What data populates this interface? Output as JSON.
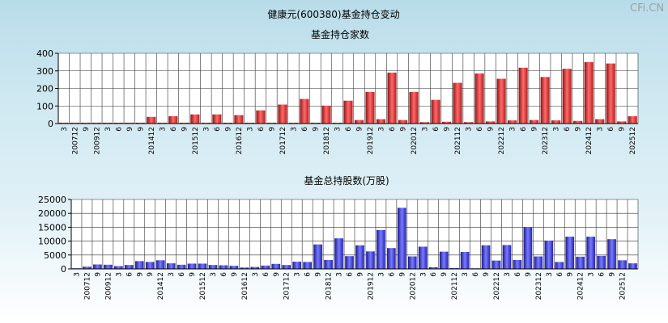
{
  "page": {
    "title": "健康元(600380)基金持仓变动",
    "watermark": "CFi.CN"
  },
  "chart_data": [
    {
      "type": "bar",
      "title": "基金持仓家数",
      "color": "#d93636",
      "ylim": [
        0,
        400
      ],
      "yticks": [
        0,
        100,
        200,
        300,
        400
      ],
      "ytick_labels": [
        "0",
        "100",
        "200",
        "300",
        "400"
      ],
      "tick_labels": [
        "3",
        "200712",
        "9",
        "200912",
        "3",
        "6",
        "9",
        "9",
        "201412",
        "3",
        "6",
        "9",
        "201512",
        "3",
        "6",
        "9",
        "201612",
        "3",
        "6",
        "9",
        "201712",
        "3",
        "6",
        "9",
        "201812",
        "3",
        "6",
        "9",
        "201912",
        "3",
        "6",
        "9",
        "202012",
        "3",
        "6",
        "9",
        "202112",
        "3",
        "6",
        "9",
        "202212",
        "3",
        "6",
        "9",
        "202312",
        "3",
        "6",
        "9",
        "202412",
        "3",
        "6",
        "9",
        "202512"
      ],
      "values": [
        5,
        5,
        5,
        5,
        5,
        5,
        5,
        5,
        38,
        5,
        42,
        5,
        52,
        5,
        52,
        5,
        48,
        5,
        75,
        5,
        108,
        5,
        140,
        5,
        102,
        5,
        130,
        20,
        180,
        25,
        290,
        20,
        180,
        8,
        135,
        10,
        232,
        8,
        285,
        12,
        255,
        18,
        318,
        20,
        265,
        18,
        312,
        15,
        350,
        25,
        342,
        12,
        42
      ]
    },
    {
      "type": "bar",
      "title": "基金总持股数(万股)",
      "color": "#3a3ad6",
      "ylim": [
        0,
        25000
      ],
      "yticks": [
        0,
        5000,
        10000,
        15000,
        20000,
        25000
      ],
      "ytick_labels": [
        "0",
        "5000",
        "10000",
        "15000",
        "20000",
        "25000"
      ],
      "tick_labels": [
        "3",
        "200712",
        "9",
        "200912",
        "3",
        "6",
        "9",
        "9",
        "201412",
        "3",
        "6",
        "9",
        "201512",
        "3",
        "6",
        "9",
        "201612",
        "3",
        "6",
        "9",
        "201712",
        "3",
        "6",
        "9",
        "201812",
        "3",
        "6",
        "9",
        "201912",
        "3",
        "6",
        "9",
        "202012",
        "3",
        "6",
        "9",
        "202112",
        "3",
        "6",
        "9",
        "202212",
        "3",
        "6",
        "9",
        "202312",
        "3",
        "6",
        "9",
        "202412",
        "3",
        "6",
        "9",
        "202512"
      ],
      "values": [
        200,
        800,
        1600,
        1500,
        1000,
        1400,
        2800,
        2500,
        3100,
        2000,
        1500,
        1900,
        1900,
        1400,
        1300,
        1100,
        500,
        700,
        1200,
        1800,
        1400,
        2600,
        2500,
        8800,
        3200,
        11000,
        4600,
        8500,
        6300,
        14000,
        7500,
        22000,
        4500,
        8000,
        600,
        6200,
        300,
        6100,
        200,
        8500,
        3000,
        8600,
        3200,
        15000,
        4500,
        10200,
        2500,
        11600,
        4400,
        11600,
        4700,
        10700,
        3100,
        2000
      ]
    }
  ]
}
